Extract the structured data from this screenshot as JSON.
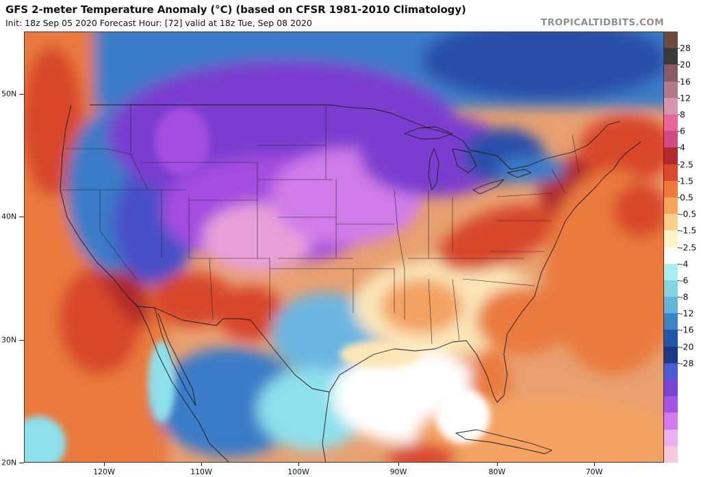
{
  "header": {
    "title": "GFS 2-meter Temperature Anomaly (°C) (based on CFSR 1981-2010 Climatology)",
    "subtitle": "Init: 18z Sep 05 2020   Forecast Hour: [72]   valid at 18z Tue, Sep 08 2020",
    "brand": "TROPICALTIDBITS.COM"
  },
  "axes": {
    "latitude_labels": [
      "50N",
      "40N",
      "30N",
      "20N"
    ],
    "longitude_labels": [
      "120W",
      "110W",
      "100W",
      "90W",
      "80W",
      "70W"
    ]
  },
  "legend": {
    "labels": [
      "28",
      "20",
      "16",
      "12",
      "8",
      "6",
      "4",
      "2.5",
      "1.5",
      "0.5",
      "-0.5",
      "-1.5",
      "-2.5",
      "-4",
      "-6",
      "-8",
      "-12",
      "-16",
      "-20",
      "-28"
    ],
    "colors": [
      "#6e4a3c",
      "#3a3a3a",
      "#8a5a62",
      "#b07a88",
      "#d896ae",
      "#e8679a",
      "#d24b88",
      "#b32a2a",
      "#d84a2a",
      "#ee7a3a",
      "#f5a65c",
      "#fbd08a",
      "#fff4c4",
      "#ffffff",
      "#a8f0f0",
      "#84d4e4",
      "#62b4dc",
      "#3a84c8",
      "#1f58a8",
      "#1a3a88",
      "#4a5ad0",
      "#7844d6",
      "#a454e8",
      "#d07cf0",
      "#eab0f0",
      "#f8c8e0"
    ],
    "color_names": [
      "extreme-warm",
      "dark",
      "mauve",
      "pink-mauve",
      "light-pink",
      "pink",
      "magenta-red",
      "dark-red",
      "red",
      "orange-red",
      "orange",
      "light-orange",
      "pale-yellow",
      "white",
      "pale-cyan",
      "light-blue",
      "sky-blue",
      "blue",
      "dark-blue",
      "navy",
      "indigo",
      "violet",
      "purple",
      "light-purple",
      "lavender",
      "pale-pink"
    ]
  },
  "map": {
    "region": "Continental United States",
    "colors": {
      "deep_red": "#b02a2a",
      "red": "#d8472c",
      "orange": "#ea7a3c",
      "light_orange": "#f3a262",
      "pale": "#fbe6b8",
      "white": "#ffffff",
      "cyan": "#8ee0ec",
      "light_blue": "#6ab6e0",
      "blue": "#3a7cc8",
      "dark_blue": "#2a50a8",
      "indigo": "#4a50c8",
      "violet": "#7a3ed0",
      "purple": "#a44ee0",
      "pink_purple": "#d07ce8",
      "mauve": "#e8a0d8"
    }
  }
}
